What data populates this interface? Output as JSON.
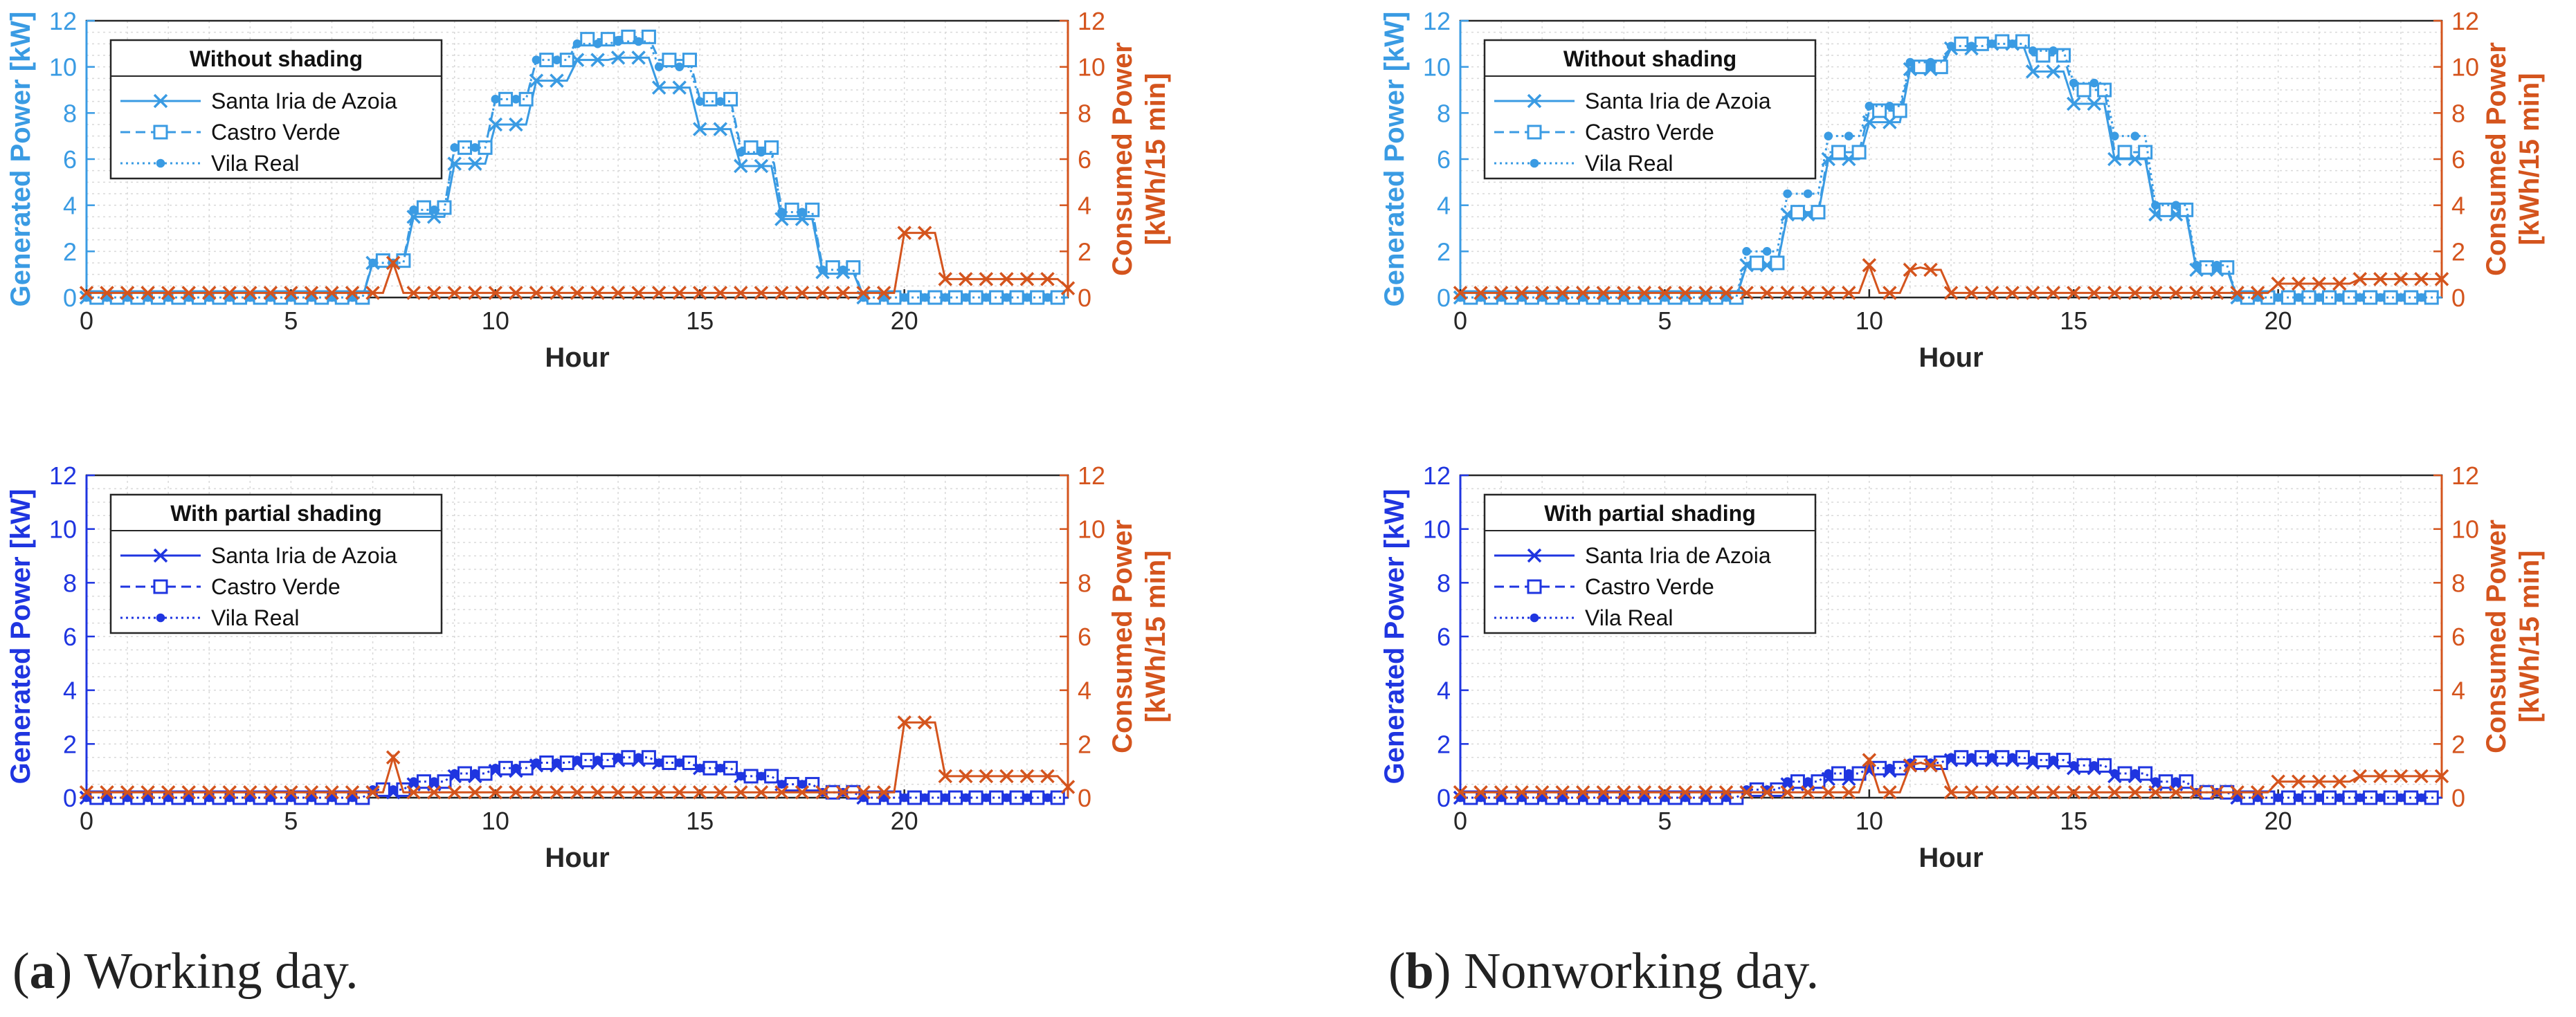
{
  "colors": {
    "gen_light": "#3a9be3",
    "gen_dark": "#1f35e0",
    "consumed": "#d4541d",
    "axis": "#262626",
    "grid": "#d9d9d9"
  },
  "captions": [
    {
      "label": "a",
      "text": ") Working day."
    },
    {
      "label": "b",
      "text": ") Nonworking day."
    }
  ],
  "chart_data": [
    {
      "id": "wd-top",
      "type": "line",
      "panel": "(a) Working day",
      "legend_title": "Without shading",
      "xlabel": "Hour",
      "ylabel_left": "Generated Power [kW]",
      "ylabel_right_1": "Consumed Power",
      "ylabel_right_2": "[kWh/15 min]",
      "xlim": [
        0,
        24
      ],
      "ylim_left": [
        0,
        12
      ],
      "ylim_right": [
        0,
        12
      ],
      "xticks": [
        0,
        5,
        10,
        15,
        20
      ],
      "yticks": [
        0,
        2,
        4,
        6,
        8,
        10,
        12
      ],
      "series_color": "gen_light",
      "series": [
        {
          "name": "Santa Iria de Azoia",
          "marker": "x",
          "dash": "solid",
          "hourly": [
            0,
            0,
            0,
            0,
            0,
            0,
            0,
            1.5,
            3.5,
            5.8,
            7.5,
            9.4,
            10.3,
            10.4,
            9.1,
            7.3,
            5.7,
            3.4,
            1.1,
            0,
            0,
            0,
            0,
            0
          ]
        },
        {
          "name": "Castro Verde",
          "marker": "square",
          "dash": "dashed",
          "hourly": [
            0,
            0,
            0,
            0,
            0,
            0,
            0,
            1.6,
            3.9,
            6.5,
            8.6,
            10.3,
            11.2,
            11.3,
            10.3,
            8.6,
            6.5,
            3.8,
            1.3,
            0,
            0,
            0,
            0,
            0
          ]
        },
        {
          "name": "Vila Real",
          "marker": "dot",
          "dash": "dotted",
          "hourly": [
            0,
            0,
            0,
            0,
            0,
            0,
            0,
            1.5,
            3.8,
            6.5,
            8.6,
            10.3,
            11.0,
            11.1,
            10.0,
            8.5,
            6.3,
            3.7,
            1.2,
            0,
            0,
            0,
            0,
            0
          ]
        }
      ],
      "consumed": {
        "name": "Consumed",
        "marker": "x",
        "hourly": [
          0.2,
          0.2,
          0.2,
          0.2,
          0.2,
          0.2,
          0.2,
          0.2,
          0.2,
          0.2,
          0.2,
          0.2,
          0.2,
          0.2,
          0.2,
          0.2,
          0.2,
          0.2,
          0.2,
          0.2,
          2.8,
          0.8,
          0.8,
          0.8
        ],
        "peaks": [
          [
            7.5,
            1.5
          ],
          [
            24,
            0.4
          ]
        ]
      }
    },
    {
      "id": "nwd-top",
      "type": "line",
      "panel": "(b) Nonworking day",
      "legend_title": "Without shading",
      "xlabel": "Hour",
      "ylabel_left": "Generated Power [kW]",
      "ylabel_right_1": "Consumed Power",
      "ylabel_right_2": "[kWh/15 min]",
      "xlim": [
        0,
        24
      ],
      "ylim_left": [
        0,
        12
      ],
      "ylim_right": [
        0,
        12
      ],
      "xticks": [
        0,
        5,
        10,
        15,
        20
      ],
      "yticks": [
        0,
        2,
        4,
        6,
        8,
        10,
        12
      ],
      "series_color": "gen_light",
      "series": [
        {
          "name": "Santa Iria de Azoia",
          "marker": "x",
          "dash": "solid",
          "hourly": [
            0,
            0,
            0,
            0,
            0,
            0,
            0,
            1.4,
            3.6,
            6.0,
            7.6,
            9.9,
            10.8,
            11.0,
            9.8,
            8.4,
            6.0,
            3.6,
            1.2,
            0,
            0,
            0,
            0,
            0
          ]
        },
        {
          "name": "Castro Verde",
          "marker": "square",
          "dash": "dashed",
          "hourly": [
            0,
            0,
            0,
            0,
            0,
            0,
            0,
            1.5,
            3.7,
            6.3,
            8.1,
            10.0,
            11.0,
            11.1,
            10.5,
            9.0,
            6.3,
            3.8,
            1.3,
            0,
            0,
            0,
            0,
            0
          ]
        },
        {
          "name": "Vila Real",
          "marker": "dot",
          "dash": "dotted",
          "hourly": [
            0,
            0,
            0,
            0,
            0,
            0,
            0,
            2.0,
            4.5,
            7.0,
            8.3,
            10.2,
            10.9,
            11.0,
            10.7,
            9.3,
            7.0,
            4.0,
            1.4,
            0,
            0,
            0,
            0,
            0
          ]
        }
      ],
      "consumed": {
        "name": "Consumed",
        "marker": "x",
        "hourly": [
          0.2,
          0.2,
          0.2,
          0.2,
          0.2,
          0.2,
          0.2,
          0.2,
          0.2,
          0.2,
          0.2,
          1.2,
          0.2,
          0.2,
          0.2,
          0.2,
          0.2,
          0.2,
          0.2,
          0.2,
          0.6,
          0.6,
          0.8,
          0.8
        ],
        "peaks": [
          [
            10,
            1.4
          ],
          [
            11.2,
            1.3
          ]
        ]
      }
    },
    {
      "id": "wd-bottom",
      "type": "line",
      "panel": "(a) Working day",
      "legend_title": "With partial shading",
      "xlabel": "Hour",
      "ylabel_left": "Generated Power [kW]",
      "ylabel_right_1": "Consumed Power",
      "ylabel_right_2": "[kWh/15 min]",
      "xlim": [
        0,
        24
      ],
      "ylim_left": [
        0,
        12
      ],
      "ylim_right": [
        0,
        12
      ],
      "xticks": [
        0,
        5,
        10,
        15,
        20
      ],
      "yticks": [
        0,
        2,
        4,
        6,
        8,
        10,
        12
      ],
      "series_color": "gen_dark",
      "series": [
        {
          "name": "Santa Iria de Azoia",
          "marker": "x",
          "dash": "solid",
          "hourly": [
            0,
            0,
            0,
            0,
            0,
            0,
            0,
            0.2,
            0.5,
            0.8,
            1.0,
            1.2,
            1.3,
            1.4,
            1.3,
            1.1,
            0.8,
            0.5,
            0.2,
            0,
            0,
            0,
            0,
            0
          ]
        },
        {
          "name": "Castro Verde",
          "marker": "square",
          "dash": "dashed",
          "hourly": [
            0,
            0,
            0,
            0,
            0,
            0,
            0,
            0.3,
            0.6,
            0.9,
            1.1,
            1.3,
            1.4,
            1.5,
            1.3,
            1.1,
            0.8,
            0.5,
            0.2,
            0,
            0,
            0,
            0,
            0
          ]
        },
        {
          "name": "Vila Real",
          "marker": "dot",
          "dash": "dotted",
          "hourly": [
            0,
            0,
            0,
            0,
            0,
            0,
            0,
            0.3,
            0.6,
            0.9,
            1.1,
            1.3,
            1.4,
            1.5,
            1.3,
            1.1,
            0.8,
            0.5,
            0.2,
            0,
            0,
            0,
            0,
            0
          ]
        }
      ],
      "consumed": {
        "name": "Consumed",
        "marker": "x",
        "hourly": [
          0.2,
          0.2,
          0.2,
          0.2,
          0.2,
          0.2,
          0.2,
          0.2,
          0.2,
          0.2,
          0.2,
          0.2,
          0.2,
          0.2,
          0.2,
          0.2,
          0.2,
          0.2,
          0.2,
          0.2,
          2.8,
          0.8,
          0.8,
          0.8
        ],
        "peaks": [
          [
            7.5,
            1.5
          ],
          [
            24,
            0.4
          ]
        ]
      }
    },
    {
      "id": "nwd-bottom",
      "type": "line",
      "panel": "(b) Nonworking day",
      "legend_title": "With partial shading",
      "xlabel": "Hour",
      "ylabel_left": "Generated Power [kW]",
      "ylabel_right_1": "Consumed Power",
      "ylabel_right_2": "[kWh/15 min]",
      "xlim": [
        0,
        24
      ],
      "ylim_left": [
        0,
        12
      ],
      "ylim_right": [
        0,
        12
      ],
      "xticks": [
        0,
        5,
        10,
        15,
        20
      ],
      "yticks": [
        0,
        2,
        4,
        6,
        8,
        10,
        12
      ],
      "series_color": "gen_dark",
      "series": [
        {
          "name": "Santa Iria de Azoia",
          "marker": "x",
          "dash": "solid",
          "hourly": [
            0,
            0,
            0,
            0,
            0,
            0,
            0,
            0.2,
            0.5,
            0.7,
            1.0,
            1.2,
            1.4,
            1.4,
            1.3,
            1.1,
            0.8,
            0.5,
            0.2,
            0,
            0,
            0,
            0,
            0
          ]
        },
        {
          "name": "Castro Verde",
          "marker": "square",
          "dash": "dashed",
          "hourly": [
            0,
            0,
            0,
            0,
            0,
            0,
            0,
            0.3,
            0.6,
            0.9,
            1.1,
            1.3,
            1.5,
            1.5,
            1.4,
            1.2,
            0.9,
            0.6,
            0.2,
            0,
            0,
            0,
            0,
            0
          ]
        },
        {
          "name": "Vila Real",
          "marker": "dot",
          "dash": "dotted",
          "hourly": [
            0,
            0,
            0,
            0,
            0,
            0,
            0,
            0.3,
            0.6,
            0.9,
            1.1,
            1.3,
            1.5,
            1.5,
            1.4,
            1.2,
            0.9,
            0.6,
            0.2,
            0,
            0,
            0,
            0,
            0
          ]
        }
      ],
      "consumed": {
        "name": "Consumed",
        "marker": "x",
        "hourly": [
          0.2,
          0.2,
          0.2,
          0.2,
          0.2,
          0.2,
          0.2,
          0.2,
          0.2,
          0.2,
          0.2,
          1.2,
          0.2,
          0.2,
          0.2,
          0.2,
          0.2,
          0.2,
          0.2,
          0.2,
          0.6,
          0.6,
          0.8,
          0.8
        ],
        "peaks": [
          [
            10,
            1.4
          ],
          [
            11.2,
            1.3
          ]
        ]
      }
    }
  ]
}
